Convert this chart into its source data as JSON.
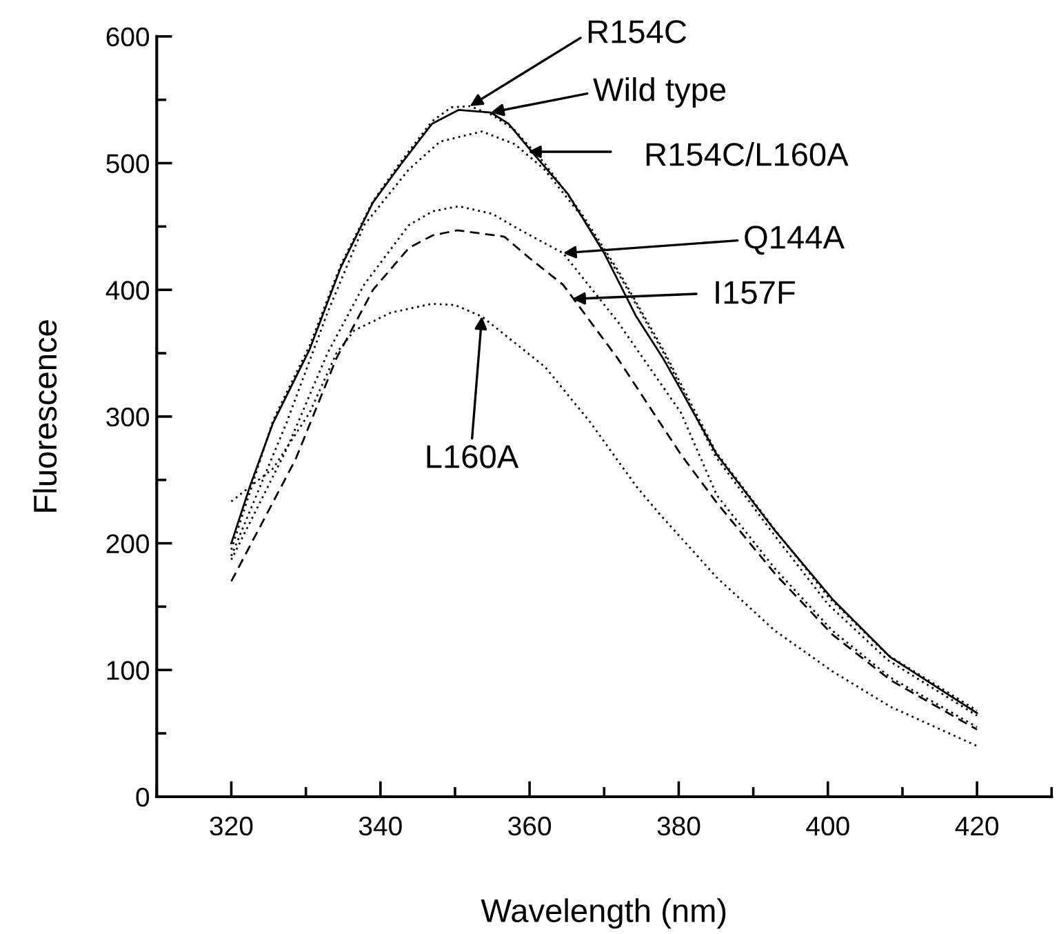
{
  "chart_data": {
    "type": "line",
    "xlabel": "Wavelength (nm)",
    "ylabel": "Fluorescence",
    "xlim": [
      310,
      430
    ],
    "xticks": [
      320,
      340,
      360,
      380,
      400,
      420
    ],
    "ylim": [
      0,
      600
    ],
    "yticks": [
      0,
      100,
      200,
      300,
      400,
      500,
      600
    ],
    "grid": false,
    "legend": false,
    "marker": "none",
    "series": [
      {
        "color": "#000000",
        "line_style": "solid",
        "x": [
          320,
          322.5,
          325.6,
          330.5,
          334.7,
          339,
          342.6,
          346.9,
          350.5,
          354.8,
          357.2,
          360.3,
          365.1,
          370,
          374.3,
          377.9,
          380.3,
          385.1,
          392.9,
          400.6,
          408.4,
          420
        ],
        "values": [
          200,
          245,
          295,
          353,
          418,
          469,
          498,
          531,
          542,
          540,
          531,
          509,
          476,
          429,
          379,
          346,
          321,
          270,
          210,
          156,
          110,
          66
        ]
      },
      {
        "color": "#000000",
        "line_style": "dotted",
        "x": [
          320,
          325.6,
          330.5,
          334.7,
          339,
          342.6,
          346.9,
          349.5,
          352,
          355,
          358,
          362,
          367,
          372,
          378,
          385,
          393,
          400,
          408,
          420
        ],
        "values": [
          195,
          297,
          356,
          420,
          470,
          500,
          533,
          544,
          545,
          538,
          526,
          500,
          460,
          414,
          352,
          272,
          210,
          158,
          112,
          68
        ]
      },
      {
        "color": "#000000",
        "line_style": "dotted",
        "x": [
          320,
          327.4,
          332.9,
          337.8,
          343.8,
          348,
          353.6,
          358,
          362,
          367,
          372,
          378,
          385,
          393,
          400,
          408,
          420
        ],
        "values": [
          190,
          295,
          382,
          451,
          495,
          517,
          525,
          515,
          495,
          458,
          412,
          350,
          268,
          205,
          152,
          108,
          64
        ]
      },
      {
        "color": "#000000",
        "line_style": "dotted",
        "x": [
          320,
          327.4,
          332.9,
          337.8,
          343.8,
          347,
          350.5,
          355,
          358.5,
          364.5,
          371.8,
          380.3,
          385.1,
          392.9,
          400.6,
          408.4,
          420
        ],
        "values": [
          187,
          274,
          350,
          404,
          451,
          462,
          466,
          460,
          448,
          429,
          375,
          303,
          238,
          180,
          131,
          94,
          55
        ]
      },
      {
        "color": "#000000",
        "line_style": "dashed",
        "x": [
          320,
          328.6,
          334.1,
          339,
          343.8,
          347,
          350.3,
          356.6,
          360,
          364.5,
          371.8,
          380.3,
          385.1,
          392.9,
          400.6,
          408.4,
          420
        ],
        "values": [
          170,
          266,
          346,
          400,
          433,
          443,
          447,
          442,
          425,
          404,
          346,
          270,
          232,
          176,
          128,
          92,
          53
        ]
      },
      {
        "color": "#000000",
        "line_style": "dotted",
        "x": [
          320,
          325.6,
          330.5,
          334.1,
          336.5,
          341.4,
          346.9,
          350,
          353.6,
          362.1,
          368.2,
          374.3,
          377.3,
          385.1,
          392.9,
          400.6,
          408.4,
          420
        ],
        "values": [
          233,
          259,
          303,
          350,
          368,
          382,
          389,
          388,
          379,
          339,
          295,
          245,
          224,
          173,
          131,
          99,
          71,
          40
        ]
      }
    ],
    "annotations": [
      {
        "text": "R154C",
        "x": 352,
        "y": 545
      },
      {
        "text": "Wild type",
        "x": 354.8,
        "y": 540
      },
      "R154C/L160A",
      {
        "text": "Q144A",
        "x": 364.5,
        "y": 429
      },
      "I157F",
      {
        "text": "L160A",
        "x": 353.6,
        "y": 379
      }
    ]
  }
}
